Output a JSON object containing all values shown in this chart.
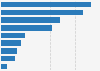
{
  "values": [
    46,
    42,
    30,
    26,
    12,
    10,
    8,
    7,
    3
  ],
  "bar_color": "#2b7bba",
  "background_color": "#f5f5f5",
  "plot_bg_color": "#f5f5f5",
  "grid_color": "#cccccc",
  "xlim": [
    0,
    50
  ],
  "bar_height": 0.72,
  "figsize": [
    1.0,
    0.71
  ],
  "dpi": 100
}
